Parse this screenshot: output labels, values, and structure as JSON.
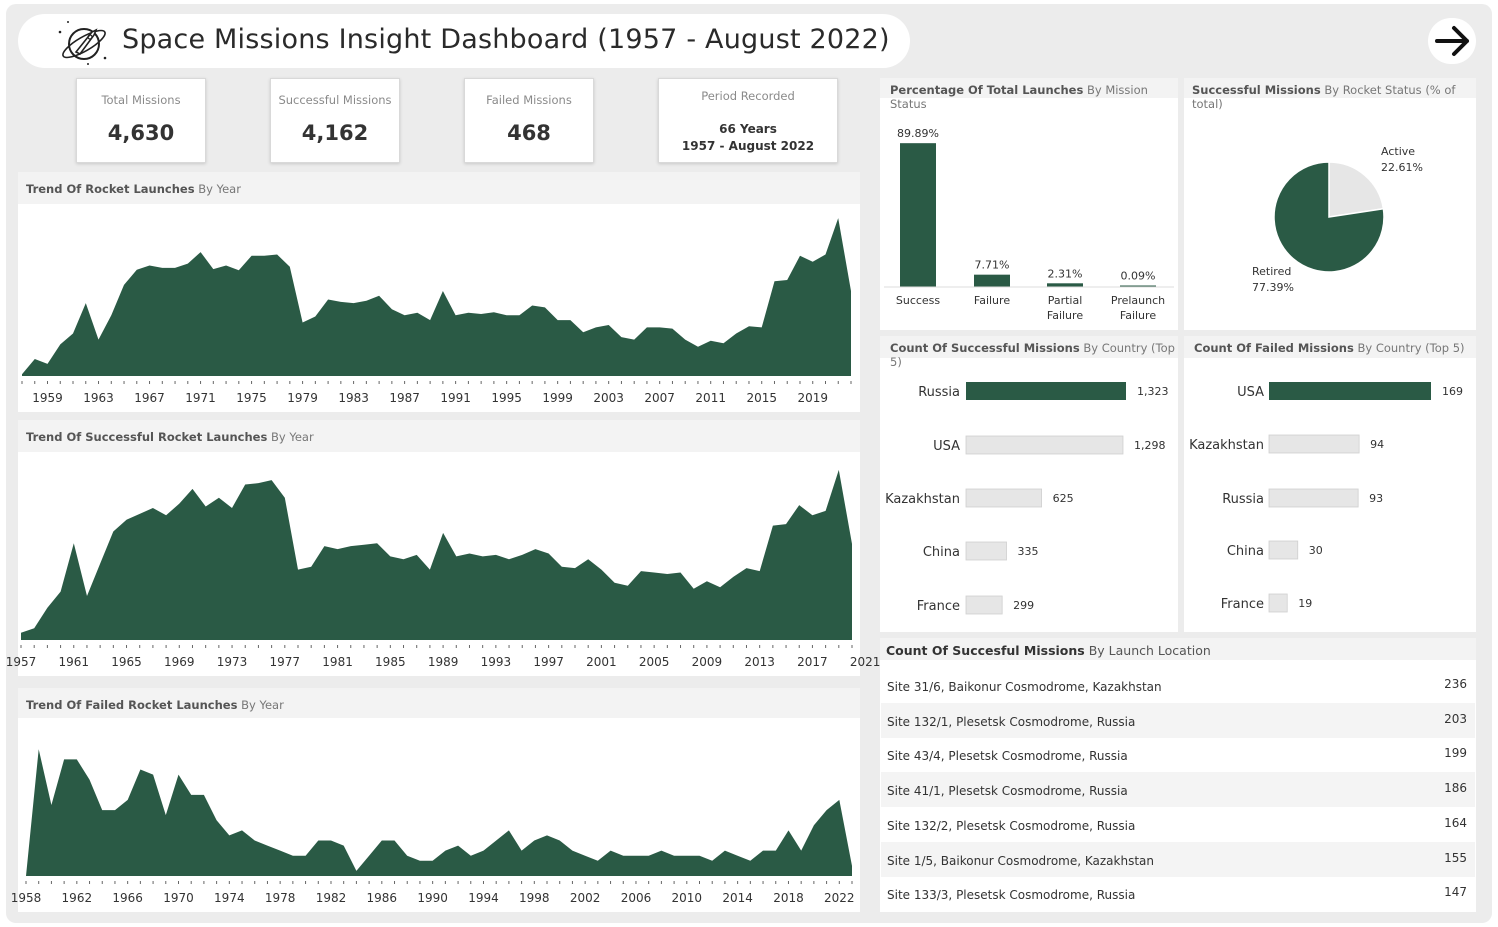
{
  "header": {
    "title": "Space Missions Insight Dashboard (1957 - August 2022)",
    "logo_icon": "rocket-planet-icon",
    "nav_icon": "arrow-right-icon"
  },
  "kpis": [
    {
      "label": "Total Missions",
      "value": "4,630"
    },
    {
      "label": "Successful Missions",
      "value": "4,162"
    },
    {
      "label": "Failed Missions",
      "value": "468"
    }
  ],
  "period": {
    "label": "Period Recorded",
    "line1": "66 Years",
    "line2": "1957 - August 2022"
  },
  "colors": {
    "accent": "#2a5a45",
    "muted": "#e6e6e6"
  },
  "trend_titles": {
    "launches": {
      "bold": "Trend Of Rocket Launches",
      "light": " By Year"
    },
    "success": {
      "bold": "Trend Of Successful Rocket Launches",
      "light": " By Year"
    },
    "failed": {
      "bold": "Trend Of Failed Rocket Launches",
      "light": " By Year"
    }
  },
  "status_title": {
    "bold": "Percentage Of Total Launches",
    "light": " By Mission Status"
  },
  "rocket_title": {
    "bold": "Successful Missions",
    "light": " By Rocket Status (% of total)"
  },
  "succ_country_title": {
    "bold": "Count Of Successful Missions",
    "light": " By Country (Top 5)"
  },
  "fail_country_title": {
    "bold": "Count Of Failed Missions",
    "light": " By Country (Top 5)"
  },
  "location_title": {
    "bold": "Count Of Succesful Missions",
    "light": " By Launch Location"
  },
  "chart_data": [
    {
      "type": "area",
      "id": "launches",
      "x_start": 1957,
      "tick_labels": [
        "1959",
        "1963",
        "1967",
        "1971",
        "1975",
        "1979",
        "1983",
        "1987",
        "1991",
        "1995",
        "1999",
        "2003",
        "2007",
        "2011",
        "2015",
        "2019"
      ],
      "values": [
        3,
        28,
        20,
        52,
        70,
        120,
        60,
        100,
        150,
        175,
        182,
        178,
        178,
        185,
        204,
        176,
        182,
        174,
        198,
        198,
        200,
        180,
        88,
        98,
        126,
        122,
        120,
        124,
        132,
        110,
        100,
        104,
        92,
        140,
        100,
        104,
        102,
        105,
        100,
        100,
        116,
        113,
        92,
        92,
        72,
        80,
        84,
        64,
        60,
        80,
        80,
        78,
        60,
        48,
        58,
        54,
        70,
        82,
        80,
        156,
        158,
        198,
        188,
        200,
        260,
        140
      ],
      "ylim": [
        0,
        270
      ]
    },
    {
      "type": "area",
      "id": "success",
      "x_start": 1957,
      "tick_labels": [
        "1957",
        "1961",
        "1965",
        "1969",
        "1973",
        "1977",
        "1981",
        "1985",
        "1989",
        "1993",
        "1997",
        "2001",
        "2005",
        "2009",
        "2013",
        "2017",
        "2021"
      ],
      "values": [
        10,
        16,
        44,
        66,
        132,
        60,
        104,
        148,
        164,
        172,
        180,
        170,
        186,
        206,
        182,
        194,
        180,
        212,
        214,
        218,
        194,
        96,
        100,
        128,
        124,
        128,
        130,
        132,
        114,
        110,
        116,
        96,
        146,
        114,
        118,
        114,
        116,
        110,
        116,
        124,
        118,
        100,
        98,
        110,
        96,
        78,
        74,
        94,
        92,
        90,
        92,
        70,
        80,
        72,
        86,
        98,
        94,
        156,
        158,
        184,
        170,
        176,
        232,
        131
      ],
      "ylim": [
        0,
        240
      ]
    },
    {
      "type": "area",
      "id": "failed",
      "x_start": 1958,
      "tick_labels": [
        "1958",
        "1962",
        "1966",
        "1970",
        "1974",
        "1978",
        "1982",
        "1986",
        "1990",
        "1994",
        "1998",
        "2002",
        "2006",
        "2010",
        "2014",
        "2018",
        "2022"
      ],
      "values": [
        0,
        25,
        14,
        23,
        23,
        19,
        13,
        13,
        15,
        21,
        20,
        12,
        20,
        16,
        16,
        11,
        8,
        9,
        7,
        6,
        5,
        4,
        4,
        7,
        7,
        6,
        1,
        4,
        7,
        7,
        4,
        3,
        3,
        5,
        6,
        4,
        5,
        7,
        9,
        5,
        7,
        8,
        7,
        5,
        4,
        3,
        5,
        4,
        4,
        4,
        5,
        4,
        4,
        4,
        3,
        5,
        4,
        3,
        5,
        5,
        9,
        5,
        10,
        13,
        15,
        2
      ],
      "ylim": [
        0,
        28
      ]
    },
    {
      "type": "bar",
      "id": "status",
      "categories": [
        [
          "Success"
        ],
        [
          "Failure"
        ],
        [
          "Partial",
          "Failure"
        ],
        [
          "Prelaunch",
          "Failure"
        ]
      ],
      "values": [
        89.89,
        7.71,
        2.31,
        0.09
      ],
      "labels": [
        "89.89%",
        "7.71%",
        "2.31%",
        "0.09%"
      ],
      "ylim": [
        0,
        100
      ]
    },
    {
      "type": "pie",
      "id": "rocket",
      "slices": [
        {
          "name": "Active",
          "value": 22.61,
          "label": "22.61%"
        },
        {
          "name": "Retired",
          "value": 77.39,
          "label": "77.39%"
        }
      ]
    },
    {
      "type": "bar",
      "id": "succ_country",
      "orientation": "horizontal",
      "categories": [
        "Russia",
        "USA",
        "Kazakhstan",
        "China",
        "France"
      ],
      "values": [
        1323,
        1298,
        625,
        335,
        299
      ],
      "labels": [
        "1,323",
        "1,298",
        "625",
        "335",
        "299"
      ],
      "highlight": 0
    },
    {
      "type": "bar",
      "id": "fail_country",
      "orientation": "horizontal",
      "categories": [
        "USA",
        "Kazakhstan",
        "Russia",
        "China",
        "France"
      ],
      "values": [
        169,
        94,
        93,
        30,
        19
      ],
      "labels": [
        "169",
        "94",
        "93",
        "30",
        "19"
      ],
      "highlight": 0
    },
    {
      "type": "table",
      "id": "locations",
      "rows": [
        {
          "name": "Site 31/6, Baikonur Cosmodrome, Kazakhstan",
          "count": "236"
        },
        {
          "name": "Site 132/1, Plesetsk Cosmodrome, Russia",
          "count": "203"
        },
        {
          "name": "Site 43/4, Plesetsk Cosmodrome, Russia",
          "count": "199"
        },
        {
          "name": "Site 41/1, Plesetsk Cosmodrome, Russia",
          "count": "186"
        },
        {
          "name": "Site 132/2, Plesetsk Cosmodrome, Russia",
          "count": "164"
        },
        {
          "name": "Site 1/5, Baikonur Cosmodrome, Kazakhstan",
          "count": "155"
        },
        {
          "name": "Site 133/3, Plesetsk Cosmodrome, Russia",
          "count": "147"
        }
      ]
    }
  ]
}
